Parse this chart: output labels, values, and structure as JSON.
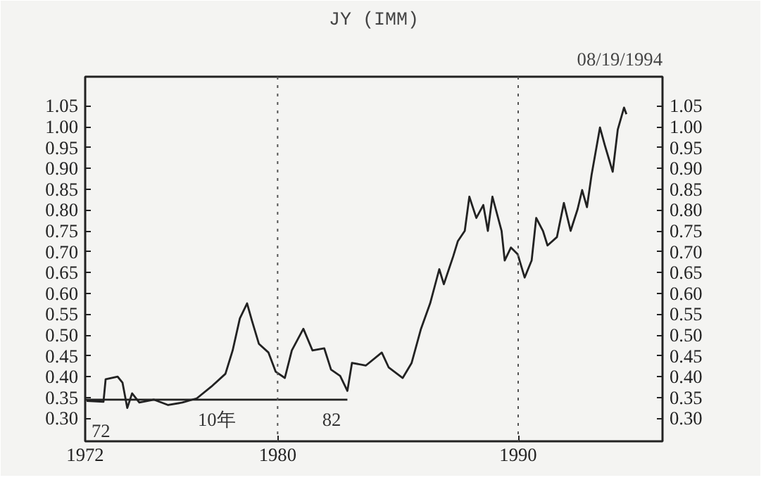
{
  "chart_data": {
    "type": "line",
    "title": "JY (IMM)",
    "subtitle": "08/19/1994",
    "xlim": [
      1972,
      1996
    ],
    "xticks": [
      1972,
      1980,
      1990
    ],
    "ylim": [
      0.245,
      1.12
    ],
    "yticks": [
      {
        "value": 0.3,
        "label": "0.30"
      },
      {
        "value": 0.35,
        "label": "0.35"
      },
      {
        "value": 0.4,
        "label": "0.40"
      },
      {
        "value": 0.45,
        "label": "0.45"
      },
      {
        "value": 0.5,
        "label": "0.50"
      },
      {
        "value": 0.55,
        "label": "0.55"
      },
      {
        "value": 0.6,
        "label": "0.60"
      },
      {
        "value": 0.65,
        "label": "0.65"
      },
      {
        "value": 0.7,
        "label": "0.70"
      },
      {
        "value": 0.75,
        "label": "0.75"
      },
      {
        "value": 0.8,
        "label": "0.80"
      },
      {
        "value": 0.85,
        "label": "0.85"
      },
      {
        "value": 0.9,
        "label": "0.90"
      },
      {
        "value": 0.95,
        "label": "0.95"
      },
      {
        "value": 1.0,
        "label": "1.00"
      },
      {
        "value": 1.05,
        "label": "1.05"
      }
    ],
    "y2lim": [
      0.245,
      1.12
    ],
    "y2ticks": [
      {
        "value": 0.3,
        "label": "0.30"
      },
      {
        "value": 0.35,
        "label": "0.35"
      },
      {
        "value": 0.4,
        "label": "0.40"
      },
      {
        "value": 0.45,
        "label": "0.45"
      },
      {
        "value": 0.5,
        "label": "0.50"
      },
      {
        "value": 0.55,
        "label": "0.55"
      },
      {
        "value": 0.6,
        "label": "0.60"
      },
      {
        "value": 0.65,
        "label": "0.65"
      },
      {
        "value": 0.7,
        "label": "0.70"
      },
      {
        "value": 0.75,
        "label": "0.75"
      },
      {
        "value": 0.8,
        "label": "0.80"
      },
      {
        "value": 0.85,
        "label": "0.85"
      },
      {
        "value": 0.9,
        "label": "0.90"
      },
      {
        "value": 0.95,
        "label": "0.95"
      },
      {
        "value": 1.0,
        "label": "1.00"
      },
      {
        "value": 1.05,
        "label": "1.05"
      }
    ],
    "grid": false,
    "marker": "none",
    "line_style": "solid",
    "series": [
      {
        "color": "#222222",
        "x": [
          1972.06,
          1972.76,
          1972.85,
          1973.35,
          1973.55,
          1973.75,
          1973.95,
          1974.25,
          1974.85,
          1975.45,
          1976.04,
          1976.64,
          1977.24,
          1977.83,
          1978.13,
          1978.43,
          1978.73,
          1978.93,
          1979.22,
          1979.62,
          1979.92,
          1980.3,
          1980.59,
          1981.07,
          1981.45,
          1981.94,
          1982.22,
          1982.6,
          1982.9,
          1983.09,
          1983.67,
          1984.33,
          1984.62,
          1985.2,
          1985.57,
          1985.96,
          1986.34,
          1986.72,
          1986.91,
          1987.3,
          1987.49,
          1987.78,
          1987.97,
          1988.26,
          1988.55,
          1988.74,
          1988.93,
          1989.31,
          1989.44,
          1989.7,
          1989.98,
          1990.27,
          1990.56,
          1990.75,
          1991.03,
          1991.22,
          1991.61,
          1991.9,
          1992.18,
          1992.47,
          1992.66,
          1992.86,
          1993.05,
          1993.4,
          1993.6,
          1993.93,
          1994.14,
          1994.4,
          1994.5
        ],
        "values": [
          0.342,
          0.34,
          0.394,
          0.4,
          0.386,
          0.325,
          0.36,
          0.338,
          0.345,
          0.332,
          0.338,
          0.348,
          0.376,
          0.407,
          0.463,
          0.54,
          0.576,
          0.535,
          0.479,
          0.458,
          0.412,
          0.397,
          0.463,
          0.515,
          0.463,
          0.468,
          0.417,
          0.402,
          0.366,
          0.433,
          0.427,
          0.458,
          0.422,
          0.397,
          0.433,
          0.515,
          0.576,
          0.658,
          0.622,
          0.689,
          0.725,
          0.75,
          0.832,
          0.781,
          0.812,
          0.75,
          0.832,
          0.75,
          0.679,
          0.71,
          0.694,
          0.638,
          0.679,
          0.781,
          0.75,
          0.715,
          0.735,
          0.817,
          0.75,
          0.802,
          0.848,
          0.807,
          0.884,
          0.998,
          0.956,
          0.892,
          0.993,
          1.046,
          1.03
        ]
      },
      {
        "color": "#222222",
        "x": [
          1972,
          1982.9
        ],
        "values": [
          0.345,
          0.345
        ]
      }
    ],
    "ref_lines": [
      {
        "axis": "x",
        "value": 1980,
        "line_style": "dotted",
        "color": "#555555"
      },
      {
        "axis": "x",
        "value": 1990,
        "line_style": "dotted",
        "color": "#555555"
      }
    ],
    "annotations": [
      "72",
      "10年",
      "82"
    ]
  }
}
